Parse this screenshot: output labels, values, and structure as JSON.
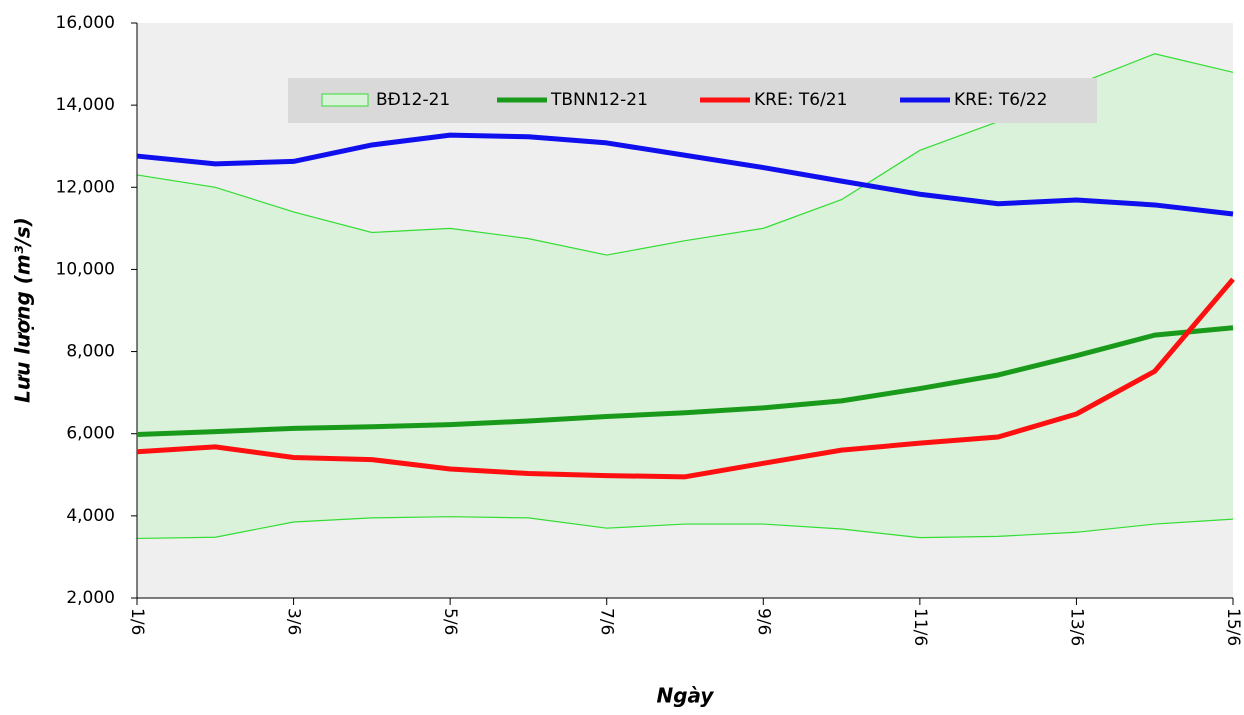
{
  "chart_data": {
    "type": "line",
    "x_label": "Ngày",
    "y_label": "Lưu lượng (m³/s)",
    "categories": [
      "1/6",
      null,
      "3/6",
      null,
      "5/6",
      null,
      "7/6",
      null,
      "9/6",
      null,
      "11/6",
      null,
      "13/6",
      null,
      "15/6"
    ],
    "band": {
      "name": "BĐ12-21",
      "color": "#33dd33",
      "fill": "#d9f2d9",
      "upper": [
        12300,
        12000,
        11400,
        10900,
        11000,
        10750,
        10350,
        10700,
        11000,
        11700,
        12900,
        13600,
        14500,
        15250,
        14800
      ],
      "lower": [
        3450,
        3480,
        3850,
        3950,
        3980,
        3950,
        3700,
        3800,
        3800,
        3680,
        3470,
        3500,
        3600,
        3800,
        3920
      ]
    },
    "series": [
      {
        "name": "TBNN12-21",
        "color": "#1a9a1a",
        "values": [
          5980,
          6050,
          6130,
          6170,
          6220,
          6310,
          6420,
          6510,
          6630,
          6800,
          7100,
          7430,
          7900,
          8400,
          8580
        ]
      },
      {
        "name": "KRE: T6/21",
        "color": "#ff1010",
        "values": [
          5560,
          5680,
          5420,
          5370,
          5140,
          5030,
          4980,
          4950,
          5280,
          5600,
          5770,
          5920,
          6480,
          7520,
          9760
        ]
      },
      {
        "name": "KRE: T6/22",
        "color": "#1010ee",
        "values": [
          12760,
          12570,
          12630,
          13030,
          13270,
          13230,
          13080,
          12780,
          12480,
          12150,
          11830,
          11600,
          11690,
          11570,
          11350
        ]
      }
    ],
    "ylim": [
      2000,
      16000
    ],
    "yticks": [
      {
        "value": 2000,
        "label": "2,000"
      },
      {
        "value": 4000,
        "label": "4,000"
      },
      {
        "value": 6000,
        "label": "6,000"
      },
      {
        "value": 8000,
        "label": "8,000"
      },
      {
        "value": 10000,
        "label": "10,000"
      },
      {
        "value": 12000,
        "label": "12,000"
      },
      {
        "value": 14000,
        "label": "14,000"
      },
      {
        "value": 16000,
        "label": "16,000"
      }
    ],
    "legend": "top"
  }
}
